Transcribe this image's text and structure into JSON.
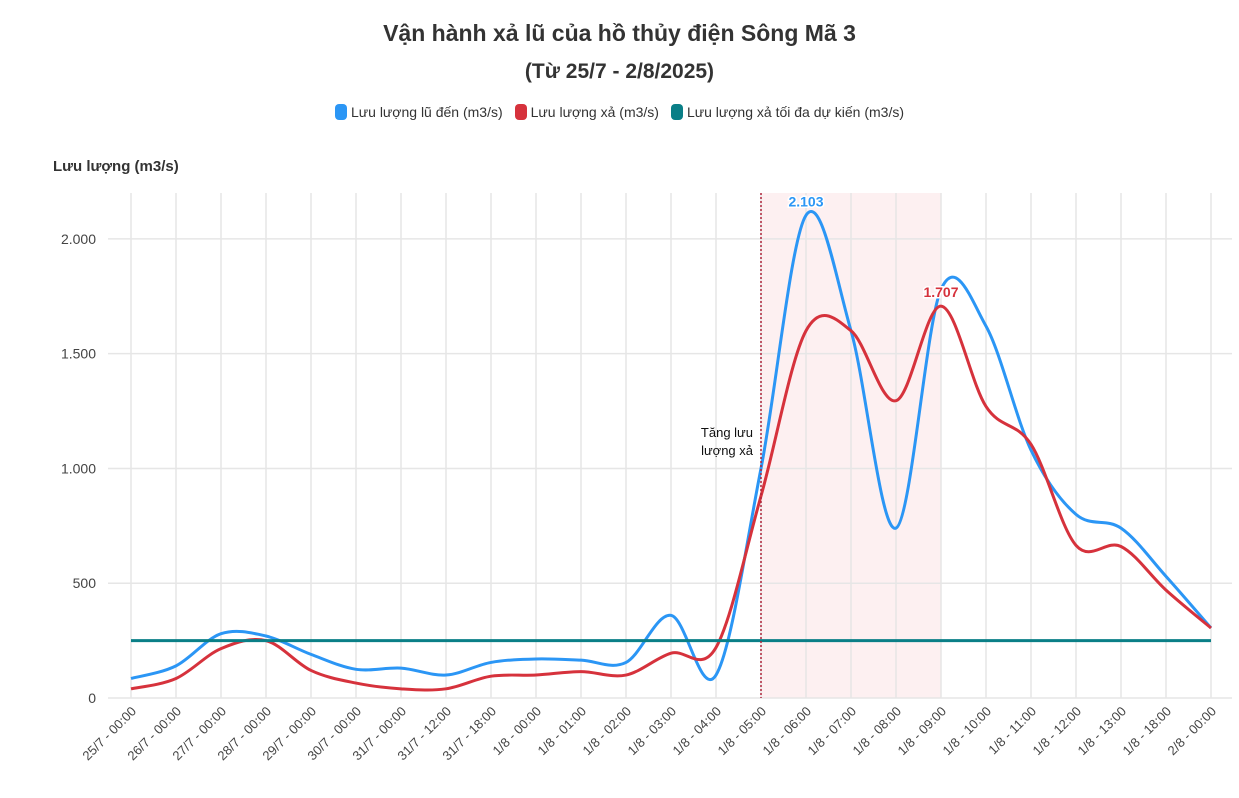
{
  "chart_data": {
    "type": "line",
    "title": "Vận hành xả lũ của hồ thủy điện Sông Mã 3",
    "subtitle": "(Từ 25/7 - 2/8/2025)",
    "ylabel": "Lưu lượng (m3/s)",
    "ylim": [
      0,
      2200
    ],
    "yticks": [
      0,
      500,
      1000,
      1500,
      2000
    ],
    "ytick_labels": [
      "0",
      "500",
      "1.000",
      "1.500",
      "2.000"
    ],
    "grid": true,
    "legend_position": "top",
    "categories": [
      "25/7 - 00:00",
      "26/7 - 00:00",
      "27/7 - 00:00",
      "28/7 - 00:00",
      "29/7 - 00:00",
      "30/7 - 00:00",
      "31/7 - 00:00",
      "31/7 - 12:00",
      "31/7 - 18:00",
      "1/8 - 00:00",
      "1/8 - 01:00",
      "1/8 - 02:00",
      "1/8 - 03:00",
      "1/8 - 04:00",
      "1/8 - 05:00",
      "1/8 - 06:00",
      "1/8 - 07:00",
      "1/8 - 08:00",
      "1/8 - 09:00",
      "1/8 - 10:00",
      "1/8 - 11:00",
      "1/8 - 12:00",
      "1/8 - 13:00",
      "1/8 - 18:00",
      "2/8 - 00:00"
    ],
    "series": [
      {
        "name": "Lưu lượng lũ đến (m3/s)",
        "color": "#2b96f5",
        "values": [
          85,
          140,
          280,
          270,
          190,
          125,
          130,
          100,
          155,
          170,
          165,
          155,
          360,
          100,
          1000,
          2103,
          1600,
          740,
          1780,
          1620,
          1080,
          800,
          740,
          530,
          305
        ]
      },
      {
        "name": "Lưu lượng xả (m3/s)",
        "color": "#d6323c",
        "values": [
          40,
          85,
          215,
          250,
          120,
          65,
          40,
          40,
          95,
          100,
          115,
          100,
          195,
          220,
          880,
          1600,
          1600,
          1295,
          1707,
          1270,
          1105,
          665,
          660,
          470,
          305
        ]
      },
      {
        "name": "Lưu lượng xả tối đa dự kiến (m3/s)",
        "color": "#0a7f87",
        "values": [
          250,
          250,
          250,
          250,
          250,
          250,
          250,
          250,
          250,
          250,
          250,
          250,
          250,
          250,
          250,
          250,
          250,
          250,
          250,
          250,
          250,
          250,
          250,
          250,
          250
        ]
      }
    ],
    "data_labels": [
      {
        "series": 0,
        "index": 15,
        "text": "2.103"
      },
      {
        "series": 1,
        "index": 18,
        "text": "1.707"
      }
    ],
    "annotation": {
      "index": 14,
      "text_line1": "Tăng lưu",
      "text_line2": "lượng xả"
    },
    "highlight_range": [
      14,
      18
    ]
  }
}
